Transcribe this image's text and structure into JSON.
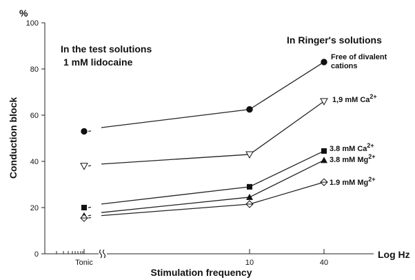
{
  "chart_data": {
    "type": "line",
    "y_unit": "%",
    "ylabel": "Conduction block",
    "xlabel": "Stimulation frequency",
    "x_unit": "Log Hz",
    "ylim": [
      0,
      100
    ],
    "y_ticks": [
      0,
      20,
      40,
      60,
      80,
      100
    ],
    "x_ticks": [
      "Tonic",
      "10",
      "40"
    ],
    "x_categories": [
      "Tonic",
      "10",
      "40"
    ],
    "annotations": {
      "left_line1": "In the test solutions",
      "left_line2": "1 mM lidocaine",
      "right": "In Ringer's solutions"
    },
    "series": [
      {
        "label_lines": [
          "Free of divalent",
          "cations"
        ],
        "marker": "filled-circle",
        "values": [
          53,
          62.5,
          83
        ]
      },
      {
        "label_lines": [
          "1,9 mM Ca"
        ],
        "label_sup": "2+",
        "marker": "open-triangle-down",
        "values": [
          38,
          43,
          66
        ]
      },
      {
        "label_lines": [
          "3.8 mM Ca"
        ],
        "label_sup": "2+",
        "marker": "filled-square",
        "values": [
          20,
          29,
          44.5
        ]
      },
      {
        "label_lines": [
          "3.8 mM Mg"
        ],
        "label_sup": "2+",
        "marker": "filled-triangle-up",
        "values": [
          16.5,
          24.5,
          40.5
        ]
      },
      {
        "label_lines": [
          "1.9 mM Mg"
        ],
        "label_sup": "2+",
        "marker": "open-diamond",
        "values": [
          15.5,
          21.5,
          31
        ]
      }
    ]
  }
}
